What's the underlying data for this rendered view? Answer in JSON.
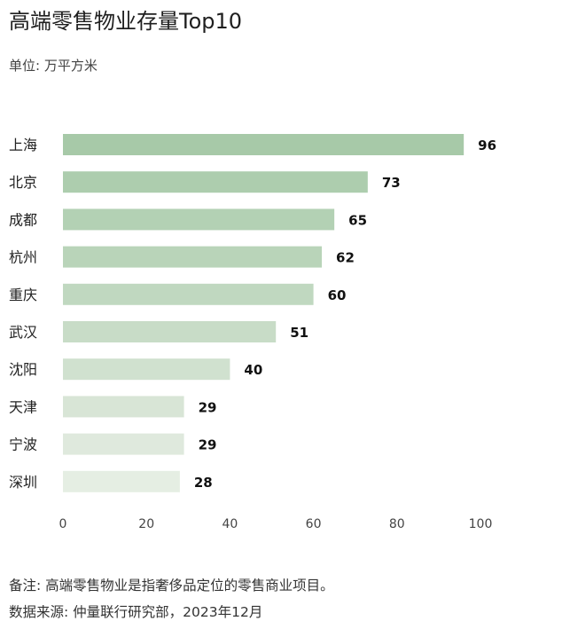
{
  "chart_data": {
    "type": "bar",
    "orientation": "horizontal",
    "title": "高端零售物业存量Top10",
    "unit_label": "单位: 万平方米",
    "categories": [
      "上海",
      "北京",
      "成都",
      "杭州",
      "重庆",
      "武汉",
      "沈阳",
      "天津",
      "宁波",
      "深圳"
    ],
    "values": [
      96,
      73,
      65,
      62,
      60,
      51,
      40,
      29,
      29,
      28
    ],
    "xlim": [
      0,
      100
    ],
    "xticks": [
      0,
      20,
      40,
      60,
      80,
      100
    ],
    "grid": false,
    "bar_colors": [
      "#a7c9a8",
      "#adcdae",
      "#b3d1b4",
      "#b9d4b9",
      "#c0d8c0",
      "#c8dcc7",
      "#d0e1cf",
      "#d8e5d6",
      "#dfe9dd",
      "#e5eee3"
    ]
  },
  "footer": {
    "note": "备注: 高端零售物业是指奢侈品定位的零售商业项目。",
    "source": "数据来源: 仲量联行研究部，2023年12月"
  }
}
